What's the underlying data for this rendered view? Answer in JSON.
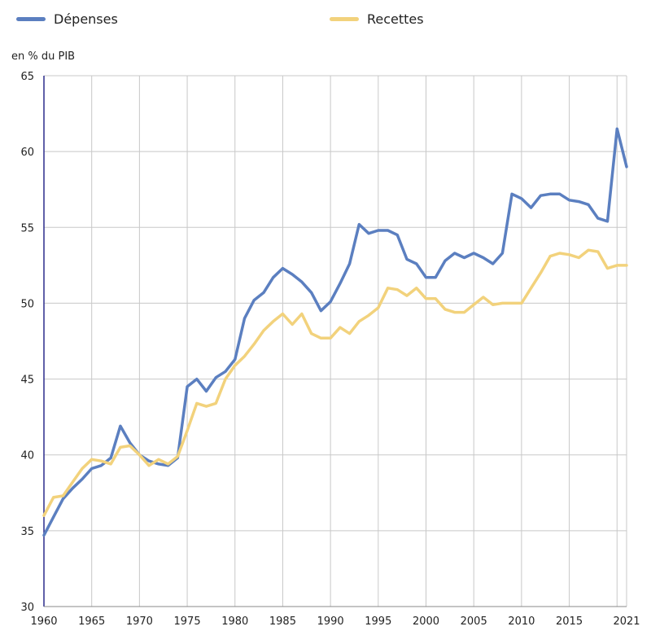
{
  "chart_data": {
    "type": "line",
    "ylabel": "en % du PIB",
    "xlabel": "",
    "ylim": [
      30,
      65
    ],
    "xlim": [
      1960,
      2021
    ],
    "grid": true,
    "legend_position": "top",
    "x_ticks": [
      1960,
      1965,
      1970,
      1975,
      1980,
      1985,
      1990,
      1995,
      2000,
      2005,
      2010,
      2015,
      2021
    ],
    "y_ticks": [
      30,
      35,
      40,
      45,
      50,
      55,
      60,
      65
    ],
    "x": [
      1960,
      1961,
      1962,
      1963,
      1964,
      1965,
      1966,
      1967,
      1968,
      1969,
      1970,
      1971,
      1972,
      1973,
      1974,
      1975,
      1976,
      1977,
      1978,
      1979,
      1980,
      1981,
      1982,
      1983,
      1984,
      1985,
      1986,
      1987,
      1988,
      1989,
      1990,
      1991,
      1992,
      1993,
      1994,
      1995,
      1996,
      1997,
      1998,
      1999,
      2000,
      2001,
      2002,
      2003,
      2004,
      2005,
      2006,
      2007,
      2008,
      2009,
      2010,
      2011,
      2012,
      2013,
      2014,
      2015,
      2016,
      2017,
      2018,
      2019,
      2020,
      2021
    ],
    "series": [
      {
        "name": "Dépenses",
        "color": "#5b7fc0",
        "values": [
          34.7,
          35.9,
          37.1,
          37.8,
          38.4,
          39.1,
          39.3,
          39.8,
          41.9,
          40.8,
          40.0,
          39.6,
          39.4,
          39.3,
          39.8,
          44.5,
          45.0,
          44.2,
          45.1,
          45.5,
          46.3,
          49.0,
          50.2,
          50.7,
          51.7,
          52.3,
          51.9,
          51.4,
          50.7,
          49.5,
          50.1,
          51.3,
          52.6,
          55.2,
          54.6,
          54.8,
          54.8,
          54.5,
          52.9,
          52.6,
          51.7,
          51.7,
          52.8,
          53.3,
          53.0,
          53.3,
          53.0,
          52.6,
          53.3,
          57.2,
          56.9,
          56.3,
          57.1,
          57.2,
          57.2,
          56.8,
          56.7,
          56.5,
          55.6,
          55.4,
          61.5,
          59.0
        ]
      },
      {
        "name": "Recettes",
        "color": "#f2d27c",
        "values": [
          36.0,
          37.2,
          37.3,
          38.2,
          39.1,
          39.7,
          39.6,
          39.4,
          40.5,
          40.6,
          40.0,
          39.3,
          39.7,
          39.4,
          39.9,
          41.6,
          43.4,
          43.2,
          43.4,
          45.0,
          45.9,
          46.5,
          47.3,
          48.2,
          48.8,
          49.3,
          48.6,
          49.3,
          48.0,
          47.7,
          47.7,
          48.4,
          48.0,
          48.8,
          49.2,
          49.7,
          51.0,
          50.9,
          50.5,
          51.0,
          50.3,
          50.3,
          49.6,
          49.4,
          49.4,
          49.9,
          50.4,
          49.9,
          50.0,
          50.0,
          50.0,
          51.0,
          52.0,
          53.1,
          53.3,
          53.2,
          53.0,
          53.5,
          53.4,
          52.3,
          52.5,
          52.5
        ]
      }
    ]
  }
}
